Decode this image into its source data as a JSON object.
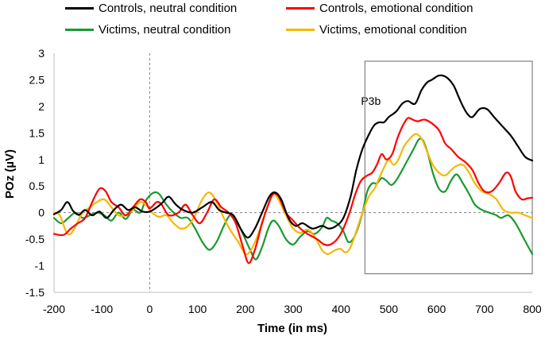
{
  "chart_data": {
    "type": "line",
    "title": "",
    "xlabel": "Time (in ms)",
    "ylabel": "POz (µV)",
    "xlim": [
      -200,
      800
    ],
    "ylim": [
      -1.5,
      3
    ],
    "xticks": [
      -200,
      -100,
      0,
      100,
      200,
      300,
      400,
      500,
      600,
      700,
      800
    ],
    "yticks": [
      -1.5,
      -1,
      -0.5,
      0,
      0.5,
      1,
      1.5,
      2,
      2.5,
      3
    ],
    "ytick_labels": [
      "-1.5",
      "-1",
      "-0.5",
      "0",
      "0.5",
      "1",
      "1.5",
      "2",
      "2.5",
      "3"
    ],
    "legend_position": "top",
    "annotation": {
      "label": "P3b",
      "x_range": [
        450,
        800
      ],
      "y_range": [
        -1.15,
        2.85
      ],
      "label_at": [
        475,
        2.1
      ]
    },
    "series": [
      {
        "name": "Controls, neutral condition",
        "color": "#000000",
        "points": [
          [
            -200,
            -0.03
          ],
          [
            -185,
            0.05
          ],
          [
            -172,
            0.2
          ],
          [
            -160,
            0.03
          ],
          [
            -148,
            -0.04
          ],
          [
            -135,
            0.05
          ],
          [
            -120,
            -0.05
          ],
          [
            -105,
            0.02
          ],
          [
            -90,
            -0.1
          ],
          [
            -75,
            0.05
          ],
          [
            -60,
            0.15
          ],
          [
            -45,
            0.05
          ],
          [
            -30,
            0.1
          ],
          [
            -15,
            0.02
          ],
          [
            0,
            0.02
          ],
          [
            15,
            0.1
          ],
          [
            28,
            0.2
          ],
          [
            40,
            0.3
          ],
          [
            55,
            0.15
          ],
          [
            70,
            0.05
          ],
          [
            90,
            0.0
          ],
          [
            110,
            0.1
          ],
          [
            130,
            0.2
          ],
          [
            145,
            0.05
          ],
          [
            160,
            0.0
          ],
          [
            175,
            -0.05
          ],
          [
            190,
            -0.3
          ],
          [
            205,
            -0.47
          ],
          [
            220,
            -0.3
          ],
          [
            235,
            0.0
          ],
          [
            250,
            0.3
          ],
          [
            262,
            0.38
          ],
          [
            275,
            0.25
          ],
          [
            290,
            -0.1
          ],
          [
            305,
            -0.25
          ],
          [
            320,
            -0.2
          ],
          [
            340,
            -0.3
          ],
          [
            360,
            -0.25
          ],
          [
            375,
            -0.3
          ],
          [
            390,
            -0.25
          ],
          [
            405,
            -0.1
          ],
          [
            420,
            0.3
          ],
          [
            432,
            0.8
          ],
          [
            445,
            1.2
          ],
          [
            460,
            1.5
          ],
          [
            470,
            1.65
          ],
          [
            480,
            1.7
          ],
          [
            490,
            1.7
          ],
          [
            500,
            1.8
          ],
          [
            515,
            1.9
          ],
          [
            528,
            2.05
          ],
          [
            540,
            2.1
          ],
          [
            555,
            2.05
          ],
          [
            568,
            2.3
          ],
          [
            580,
            2.45
          ],
          [
            590,
            2.5
          ],
          [
            605,
            2.58
          ],
          [
            620,
            2.55
          ],
          [
            635,
            2.4
          ],
          [
            645,
            2.2
          ],
          [
            655,
            2.0
          ],
          [
            665,
            1.85
          ],
          [
            675,
            1.8
          ],
          [
            690,
            1.95
          ],
          [
            705,
            1.95
          ],
          [
            720,
            1.8
          ],
          [
            735,
            1.65
          ],
          [
            755,
            1.45
          ],
          [
            770,
            1.25
          ],
          [
            785,
            1.05
          ],
          [
            800,
            0.98
          ]
        ]
      },
      {
        "name": "Controls, emotional condition",
        "color": "#ff0000",
        "points": [
          [
            -200,
            -0.4
          ],
          [
            -180,
            -0.42
          ],
          [
            -165,
            -0.3
          ],
          [
            -150,
            -0.2
          ],
          [
            -135,
            -0.1
          ],
          [
            -120,
            0.2
          ],
          [
            -105,
            0.45
          ],
          [
            -92,
            0.4
          ],
          [
            -80,
            0.2
          ],
          [
            -65,
            0.1
          ],
          [
            -50,
            -0.05
          ],
          [
            -35,
            0.1
          ],
          [
            -20,
            0.25
          ],
          [
            -8,
            0.2
          ],
          [
            0,
            0.08
          ],
          [
            15,
            0.2
          ],
          [
            25,
            0.15
          ],
          [
            40,
            -0.05
          ],
          [
            60,
            0.0
          ],
          [
            75,
            0.15
          ],
          [
            90,
            -0.05
          ],
          [
            105,
            -0.2
          ],
          [
            120,
            0.0
          ],
          [
            135,
            0.25
          ],
          [
            150,
            0.1
          ],
          [
            165,
            0.0
          ],
          [
            180,
            -0.2
          ],
          [
            195,
            -0.65
          ],
          [
            207,
            -0.95
          ],
          [
            220,
            -0.7
          ],
          [
            235,
            -0.2
          ],
          [
            248,
            0.15
          ],
          [
            258,
            0.35
          ],
          [
            270,
            0.3
          ],
          [
            285,
            0.0
          ],
          [
            300,
            -0.15
          ],
          [
            315,
            -0.3
          ],
          [
            330,
            -0.4
          ],
          [
            350,
            -0.5
          ],
          [
            365,
            -0.6
          ],
          [
            378,
            -0.6
          ],
          [
            392,
            -0.5
          ],
          [
            405,
            -0.3
          ],
          [
            418,
            0.0
          ],
          [
            430,
            0.35
          ],
          [
            442,
            0.6
          ],
          [
            455,
            0.7
          ],
          [
            465,
            0.75
          ],
          [
            475,
            0.9
          ],
          [
            485,
            1.1
          ],
          [
            495,
            1.0
          ],
          [
            507,
            1.1
          ],
          [
            518,
            1.4
          ],
          [
            530,
            1.65
          ],
          [
            540,
            1.78
          ],
          [
            550,
            1.75
          ],
          [
            560,
            1.72
          ],
          [
            575,
            1.75
          ],
          [
            590,
            1.68
          ],
          [
            605,
            1.55
          ],
          [
            618,
            1.3
          ],
          [
            630,
            1.2
          ],
          [
            645,
            1.05
          ],
          [
            660,
            0.95
          ],
          [
            675,
            0.8
          ],
          [
            688,
            0.55
          ],
          [
            700,
            0.4
          ],
          [
            715,
            0.4
          ],
          [
            730,
            0.55
          ],
          [
            745,
            0.75
          ],
          [
            755,
            0.68
          ],
          [
            765,
            0.4
          ],
          [
            778,
            0.25
          ],
          [
            790,
            0.27
          ],
          [
            800,
            0.28
          ]
        ]
      },
      {
        "name": "Victims, neutral condition",
        "color": "#1a9930",
        "points": [
          [
            -200,
            -0.1
          ],
          [
            -185,
            -0.2
          ],
          [
            -170,
            -0.1
          ],
          [
            -155,
            0.0
          ],
          [
            -140,
            -0.1
          ],
          [
            -125,
            -0.05
          ],
          [
            -110,
            0.0
          ],
          [
            -95,
            -0.05
          ],
          [
            -80,
            -0.15
          ],
          [
            -65,
            0.0
          ],
          [
            -50,
            -0.12
          ],
          [
            -35,
            0.05
          ],
          [
            -20,
            0.0
          ],
          [
            -10,
            0.2
          ],
          [
            0,
            0.32
          ],
          [
            10,
            0.38
          ],
          [
            20,
            0.35
          ],
          [
            35,
            0.15
          ],
          [
            50,
            0.0
          ],
          [
            65,
            -0.1
          ],
          [
            80,
            -0.1
          ],
          [
            95,
            -0.3
          ],
          [
            110,
            -0.55
          ],
          [
            125,
            -0.7
          ],
          [
            140,
            -0.55
          ],
          [
            155,
            -0.25
          ],
          [
            168,
            -0.05
          ],
          [
            180,
            -0.12
          ],
          [
            195,
            -0.4
          ],
          [
            210,
            -0.7
          ],
          [
            222,
            -0.88
          ],
          [
            235,
            -0.65
          ],
          [
            248,
            -0.3
          ],
          [
            258,
            -0.15
          ],
          [
            270,
            -0.25
          ],
          [
            285,
            -0.5
          ],
          [
            300,
            -0.6
          ],
          [
            315,
            -0.45
          ],
          [
            330,
            -0.35
          ],
          [
            345,
            -0.4
          ],
          [
            360,
            -0.28
          ],
          [
            370,
            -0.1
          ],
          [
            380,
            -0.15
          ],
          [
            392,
            -0.2
          ],
          [
            405,
            -0.35
          ],
          [
            415,
            -0.55
          ],
          [
            425,
            -0.5
          ],
          [
            435,
            -0.3
          ],
          [
            445,
            0.0
          ],
          [
            455,
            0.4
          ],
          [
            465,
            0.55
          ],
          [
            475,
            0.55
          ],
          [
            485,
            0.65
          ],
          [
            495,
            0.6
          ],
          [
            505,
            0.52
          ],
          [
            515,
            0.6
          ],
          [
            528,
            0.8
          ],
          [
            540,
            1.0
          ],
          [
            552,
            1.2
          ],
          [
            563,
            1.38
          ],
          [
            572,
            1.35
          ],
          [
            582,
            1.1
          ],
          [
            592,
            0.75
          ],
          [
            605,
            0.45
          ],
          [
            618,
            0.4
          ],
          [
            630,
            0.6
          ],
          [
            642,
            0.72
          ],
          [
            655,
            0.55
          ],
          [
            668,
            0.35
          ],
          [
            680,
            0.15
          ],
          [
            695,
            0.05
          ],
          [
            710,
            0.0
          ],
          [
            725,
            -0.05
          ],
          [
            735,
            -0.1
          ],
          [
            750,
            -0.05
          ],
          [
            765,
            -0.2
          ],
          [
            780,
            -0.45
          ],
          [
            792,
            -0.65
          ],
          [
            800,
            -0.78
          ]
        ]
      },
      {
        "name": "Victims, emotional condition",
        "color": "#f5b800",
        "points": [
          [
            -200,
            0.0
          ],
          [
            -188,
            -0.05
          ],
          [
            -175,
            -0.35
          ],
          [
            -165,
            -0.4
          ],
          [
            -152,
            -0.2
          ],
          [
            -140,
            0.0
          ],
          [
            -125,
            0.1
          ],
          [
            -110,
            0.2
          ],
          [
            -95,
            0.25
          ],
          [
            -80,
            0.1
          ],
          [
            -65,
            -0.05
          ],
          [
            -50,
            -0.05
          ],
          [
            -35,
            0.05
          ],
          [
            -20,
            0.2
          ],
          [
            -5,
            0.12
          ],
          [
            5,
            0.0
          ],
          [
            20,
            -0.08
          ],
          [
            35,
            -0.05
          ],
          [
            50,
            -0.2
          ],
          [
            65,
            -0.3
          ],
          [
            80,
            -0.25
          ],
          [
            95,
            -0.05
          ],
          [
            110,
            0.25
          ],
          [
            125,
            0.38
          ],
          [
            140,
            0.2
          ],
          [
            155,
            -0.1
          ],
          [
            170,
            -0.35
          ],
          [
            185,
            -0.55
          ],
          [
            200,
            -0.78
          ],
          [
            212,
            -0.7
          ],
          [
            225,
            -0.45
          ],
          [
            238,
            -0.1
          ],
          [
            250,
            0.2
          ],
          [
            260,
            0.35
          ],
          [
            272,
            0.2
          ],
          [
            285,
            -0.05
          ],
          [
            300,
            -0.3
          ],
          [
            315,
            -0.38
          ],
          [
            330,
            -0.32
          ],
          [
            345,
            -0.45
          ],
          [
            360,
            -0.7
          ],
          [
            372,
            -0.78
          ],
          [
            385,
            -0.72
          ],
          [
            398,
            -0.68
          ],
          [
            410,
            -0.75
          ],
          [
            420,
            -0.65
          ],
          [
            432,
            -0.35
          ],
          [
            445,
            0.0
          ],
          [
            458,
            0.3
          ],
          [
            470,
            0.45
          ],
          [
            480,
            0.65
          ],
          [
            490,
            0.85
          ],
          [
            500,
            1.0
          ],
          [
            510,
            0.9
          ],
          [
            520,
            1.0
          ],
          [
            532,
            1.25
          ],
          [
            545,
            1.4
          ],
          [
            556,
            1.48
          ],
          [
            568,
            1.4
          ],
          [
            580,
            1.15
          ],
          [
            592,
            0.9
          ],
          [
            605,
            0.75
          ],
          [
            618,
            0.7
          ],
          [
            630,
            0.8
          ],
          [
            642,
            0.88
          ],
          [
            655,
            0.9
          ],
          [
            668,
            0.75
          ],
          [
            680,
            0.55
          ],
          [
            695,
            0.4
          ],
          [
            710,
            0.35
          ],
          [
            725,
            0.25
          ],
          [
            740,
            0.05
          ],
          [
            755,
            0.0
          ],
          [
            770,
            0.0
          ],
          [
            785,
            -0.05
          ],
          [
            800,
            -0.1
          ]
        ]
      }
    ]
  }
}
